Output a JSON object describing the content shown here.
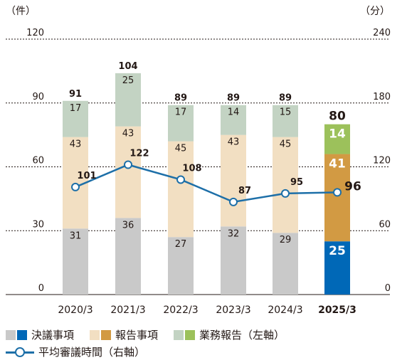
{
  "chart_data": {
    "type": "bar",
    "stacked": true,
    "categories": [
      "2020/3",
      "2021/3",
      "2022/3",
      "2023/3",
      "2024/3",
      "2025/3"
    ],
    "series": [
      {
        "name": "決議事項",
        "values": [
          31,
          36,
          27,
          32,
          29,
          25
        ],
        "color": "#c9c9c9",
        "highlight_color": "#0068b7"
      },
      {
        "name": "報告事項",
        "values": [
          43,
          43,
          45,
          43,
          45,
          41
        ],
        "color": "#f2dfc2",
        "highlight_color": "#d29a43"
      },
      {
        "name": "業務報告",
        "values": [
          17,
          25,
          17,
          14,
          15,
          14
        ],
        "color": "#c3d3c3",
        "highlight_color": "#9cc15b"
      }
    ],
    "totals": [
      91,
      104,
      89,
      89,
      89,
      80
    ],
    "line": {
      "name": "平均審議時間",
      "values": [
        101,
        122,
        108,
        87,
        95,
        96
      ],
      "color": "#1d6fa8",
      "axis": "right"
    },
    "left_axis": {
      "unit_label": "（件）",
      "ylim": [
        0,
        120
      ],
      "ticks": [
        0,
        30,
        60,
        90,
        120
      ]
    },
    "right_axis": {
      "unit_label": "（分）",
      "ylim": [
        0,
        240
      ],
      "ticks": [
        0,
        60,
        120,
        180,
        240
      ]
    },
    "highlight_category": "2025/3",
    "grid": true,
    "legend_position": "bottom"
  },
  "legend": {
    "bar_items": [
      {
        "label": "決議事項",
        "muted_color": "#c9c9c9",
        "accent_color": "#0068b7"
      },
      {
        "label": "報告事項",
        "muted_color": "#f2dfc2",
        "accent_color": "#d29a43"
      },
      {
        "label": "業務報告（左軸）",
        "muted_color": "#c3d3c3",
        "accent_color": "#9cc15b"
      }
    ],
    "line_item": {
      "label": "平均審議時間（右軸）"
    }
  }
}
